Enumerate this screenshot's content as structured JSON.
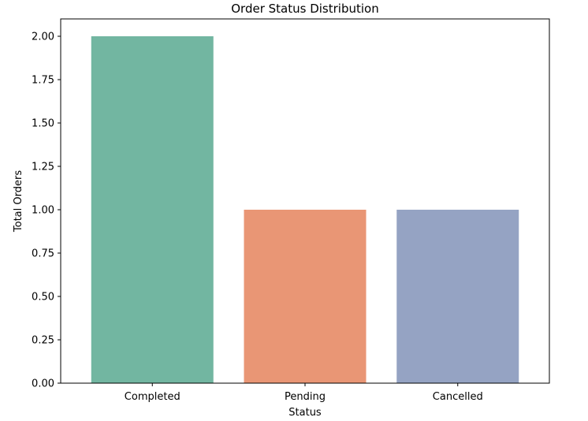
{
  "chart_data": {
    "type": "bar",
    "title": "Order Status Distribution",
    "xlabel": "Status",
    "ylabel": "Total Orders",
    "categories": [
      "Completed",
      "Pending",
      "Cancelled"
    ],
    "values": [
      2,
      1,
      1
    ],
    "colors": [
      "#72b6a1",
      "#e99675",
      "#95a3c3"
    ],
    "ylim": [
      0,
      2.1
    ],
    "yticks": [
      "0.00",
      "0.25",
      "0.50",
      "0.75",
      "1.00",
      "1.25",
      "1.50",
      "1.75",
      "2.00"
    ],
    "grid": false,
    "legend": false
  }
}
